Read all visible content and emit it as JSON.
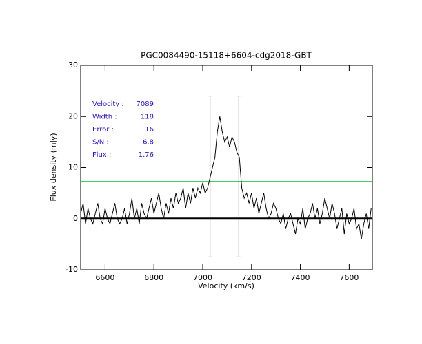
{
  "chart_data": {
    "type": "line",
    "title": "PGC0084490-15118+6604-cdg2018-GBT",
    "x_label": "Velocity (km/s)",
    "y_label": "Flux density (mJy)",
    "x": [
      6500,
      6510,
      6520,
      6530,
      6540,
      6550,
      6560,
      6570,
      6580,
      6590,
      6600,
      6610,
      6620,
      6630,
      6640,
      6650,
      6660,
      6670,
      6680,
      6690,
      6700,
      6710,
      6720,
      6730,
      6740,
      6750,
      6760,
      6770,
      6780,
      6790,
      6800,
      6810,
      6820,
      6830,
      6840,
      6850,
      6860,
      6870,
      6880,
      6890,
      6900,
      6910,
      6920,
      6930,
      6940,
      6950,
      6960,
      6970,
      6980,
      6990,
      7000,
      7010,
      7020,
      7030,
      7040,
      7050,
      7060,
      7070,
      7080,
      7090,
      7100,
      7110,
      7120,
      7130,
      7140,
      7150,
      7160,
      7170,
      7180,
      7190,
      7200,
      7210,
      7220,
      7230,
      7240,
      7250,
      7260,
      7270,
      7280,
      7290,
      7300,
      7310,
      7320,
      7330,
      7340,
      7350,
      7360,
      7370,
      7380,
      7390,
      7400,
      7410,
      7420,
      7430,
      7440,
      7450,
      7460,
      7470,
      7480,
      7490,
      7500,
      7510,
      7520,
      7530,
      7540,
      7550,
      7560,
      7570,
      7580,
      7590,
      7600,
      7610,
      7620,
      7630,
      7640,
      7650,
      7660,
      7670,
      7680,
      7690
    ],
    "series": [
      {
        "name": "spectrum",
        "color": "#000000",
        "values": [
          1,
          3,
          -1,
          2,
          0,
          -1,
          1,
          3,
          0,
          -1,
          2,
          0,
          -1,
          1,
          3,
          0,
          -1,
          0,
          2,
          -1,
          1,
          4,
          0,
          2,
          -1,
          3,
          1,
          0,
          2,
          4,
          1,
          3,
          5,
          2,
          0,
          3,
          1,
          4,
          2,
          5,
          3,
          4,
          6,
          2,
          5,
          3,
          6,
          4,
          6,
          5,
          7,
          5,
          6,
          8,
          10,
          12,
          17,
          20,
          17,
          15,
          16,
          14,
          16,
          15,
          13,
          12,
          6,
          4,
          5,
          3,
          5,
          2,
          4,
          1,
          3,
          5,
          2,
          0,
          1,
          3,
          2,
          0,
          -1,
          1,
          -2,
          0,
          1,
          -1,
          -3,
          0,
          -1,
          2,
          -2,
          0,
          1,
          3,
          0,
          2,
          -1,
          1,
          4,
          2,
          0,
          3,
          1,
          -2,
          0,
          2,
          -3,
          1,
          -1,
          0,
          2,
          -2,
          -1,
          -4,
          -1,
          1,
          -2,
          2
        ]
      }
    ],
    "xlim": [
      6500,
      7695
    ],
    "ylim": [
      -10,
      30
    ],
    "xticks": [
      6600,
      6800,
      7000,
      7200,
      7400,
      7600
    ],
    "yticks": [
      -10,
      0,
      10,
      20,
      30
    ],
    "zero_line": 0,
    "vlines": [
      7030,
      7148
    ],
    "vline_range": [
      -7.5,
      24
    ],
    "vline_color": "#5020a0",
    "hline": 7.3,
    "hline_color": "#40d060",
    "annotations": [
      {
        "label": "Velocity :",
        "value": "7089"
      },
      {
        "label": "Width :",
        "value": "118"
      },
      {
        "label": "Error :",
        "value": "16"
      },
      {
        "label": "S/N :",
        "value": "6.8"
      },
      {
        "label": "Flux :",
        "value": "1.76"
      }
    ],
    "annotation_color": "#3010b0"
  }
}
